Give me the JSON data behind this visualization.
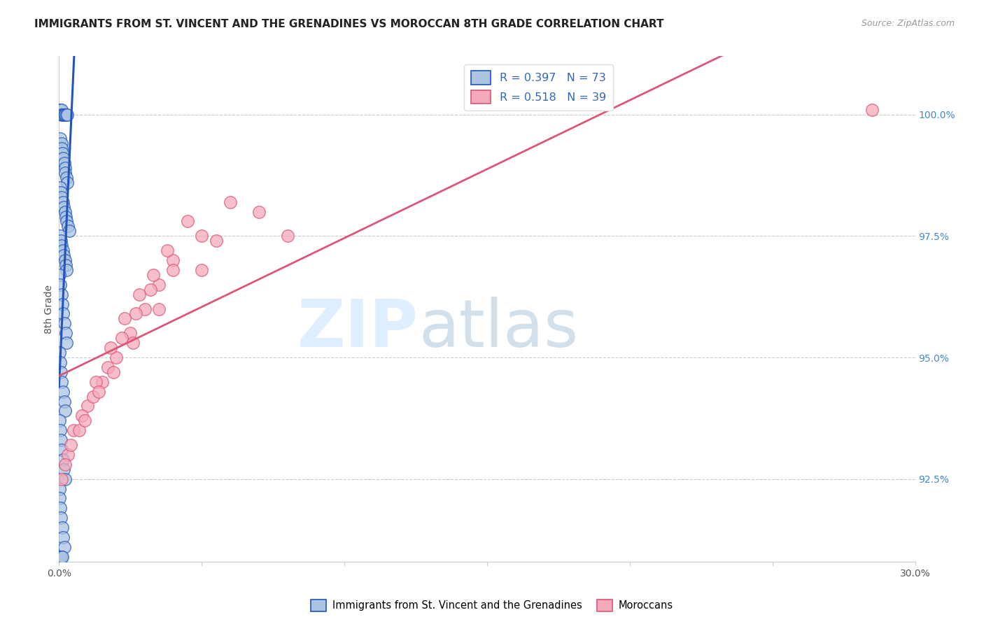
{
  "title": "IMMIGRANTS FROM ST. VINCENT AND THE GRENADINES VS MOROCCAN 8TH GRADE CORRELATION CHART",
  "source": "Source: ZipAtlas.com",
  "ylabel": "8th Grade",
  "yaxis_labels": [
    "92.5%",
    "95.0%",
    "97.5%",
    "100.0%"
  ],
  "yaxis_values": [
    92.5,
    95.0,
    97.5,
    100.0
  ],
  "xlim": [
    0.0,
    30.0
  ],
  "ylim": [
    90.8,
    101.2
  ],
  "legend1_label": "Immigrants from St. Vincent and the Grenadines",
  "legend2_label": "Moroccans",
  "R1": 0.397,
  "N1": 73,
  "R2": 0.518,
  "N2": 39,
  "color_blue": "#aac4e2",
  "color_pink": "#f5aabb",
  "line_blue": "#2255bb",
  "line_pink": "#dd5577",
  "blue_x": [
    0.05,
    0.08,
    0.1,
    0.12,
    0.15,
    0.18,
    0.2,
    0.22,
    0.25,
    0.28,
    0.05,
    0.08,
    0.1,
    0.12,
    0.15,
    0.18,
    0.2,
    0.22,
    0.25,
    0.28,
    0.03,
    0.06,
    0.09,
    0.13,
    0.17,
    0.21,
    0.24,
    0.27,
    0.3,
    0.35,
    0.03,
    0.06,
    0.09,
    0.13,
    0.17,
    0.21,
    0.24,
    0.27,
    0.02,
    0.05,
    0.08,
    0.11,
    0.15,
    0.19,
    0.23,
    0.26,
    0.02,
    0.04,
    0.07,
    0.1,
    0.14,
    0.18,
    0.22,
    0.01,
    0.03,
    0.06,
    0.09,
    0.13,
    0.17,
    0.2,
    0.01,
    0.02,
    0.04,
    0.07,
    0.11,
    0.15,
    0.18,
    0.01,
    0.02,
    0.03,
    0.05,
    0.08,
    0.12
  ],
  "blue_y": [
    100.1,
    100.1,
    100.0,
    100.0,
    100.0,
    100.0,
    100.0,
    100.0,
    100.0,
    100.0,
    99.5,
    99.4,
    99.3,
    99.2,
    99.1,
    99.0,
    98.9,
    98.8,
    98.7,
    98.6,
    98.5,
    98.4,
    98.3,
    98.2,
    98.1,
    98.0,
    97.9,
    97.8,
    97.7,
    97.6,
    97.5,
    97.4,
    97.3,
    97.2,
    97.1,
    97.0,
    96.9,
    96.8,
    96.7,
    96.5,
    96.3,
    96.1,
    95.9,
    95.7,
    95.5,
    95.3,
    95.1,
    94.9,
    94.7,
    94.5,
    94.3,
    94.1,
    93.9,
    93.7,
    93.5,
    93.3,
    93.1,
    92.9,
    92.7,
    92.5,
    92.3,
    92.1,
    91.9,
    91.7,
    91.5,
    91.3,
    91.1,
    90.9,
    90.9,
    90.9,
    90.9,
    90.9,
    90.9
  ],
  "pink_x": [
    0.1,
    0.5,
    1.0,
    1.5,
    2.0,
    2.5,
    3.0,
    3.5,
    4.0,
    5.0,
    0.3,
    0.8,
    1.3,
    1.8,
    2.3,
    2.8,
    3.3,
    3.8,
    4.5,
    6.0,
    0.2,
    0.7,
    1.2,
    1.7,
    2.2,
    2.7,
    3.2,
    4.0,
    5.5,
    7.0,
    0.4,
    0.9,
    1.4,
    1.9,
    2.6,
    3.5,
    5.0,
    8.0,
    28.5
  ],
  "pink_y": [
    92.5,
    93.5,
    94.0,
    94.5,
    95.0,
    95.5,
    96.0,
    96.5,
    97.0,
    97.5,
    93.0,
    93.8,
    94.5,
    95.2,
    95.8,
    96.3,
    96.7,
    97.2,
    97.8,
    98.2,
    92.8,
    93.5,
    94.2,
    94.8,
    95.4,
    95.9,
    96.4,
    96.8,
    97.4,
    98.0,
    93.2,
    93.7,
    94.3,
    94.7,
    95.3,
    96.0,
    96.8,
    97.5,
    100.1
  ]
}
